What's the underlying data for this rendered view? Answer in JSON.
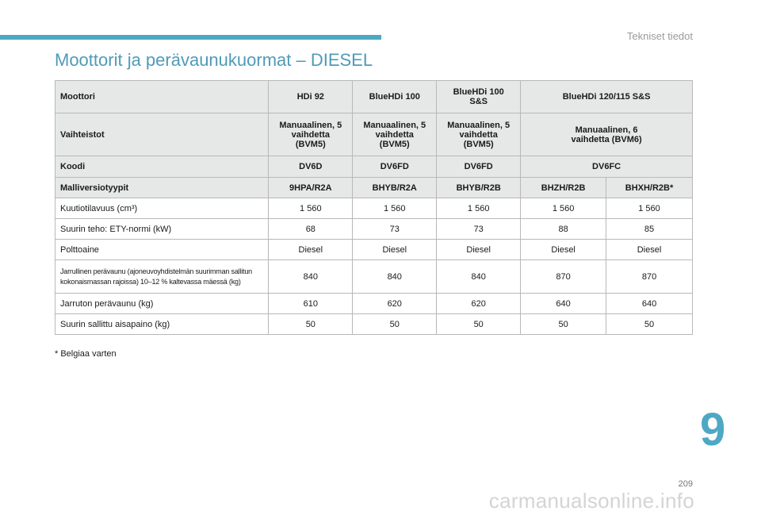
{
  "header": {
    "section_label": "Tekniset tiedot",
    "title": "Moottorit ja perävaunukuormat – DIESEL"
  },
  "table": {
    "header_rows": [
      {
        "label": "Moottori",
        "cells": [
          "HDi 92",
          "BlueHDi 100",
          "BlueHDi 100 S&S",
          "BlueHDi 120/115 S&S"
        ]
      },
      {
        "label": "Vaihteistot",
        "cells": [
          "Manuaalinen, 5 vaihdetta (BVM5)",
          "Manuaalinen, 5 vaihdetta (BVM5)",
          "Manuaalinen, 5 vaihdetta (BVM5)",
          "Manuaalinen, 6 vaihdetta (BVM6)"
        ]
      },
      {
        "label": "Koodi",
        "cells": [
          "DV6D",
          "DV6FD",
          "DV6FD",
          "DV6FC"
        ]
      },
      {
        "label": "Malliversiotyypit",
        "cells": [
          "9HPA/R2A",
          "BHYB/R2A",
          "BHYB/R2B",
          "BHZH/R2B",
          "BHXH/R2B*"
        ]
      }
    ],
    "body_rows": [
      {
        "label": "Kuutiotilavuus (cm³)",
        "cells": [
          "1 560",
          "1 560",
          "1 560",
          "1 560",
          "1 560"
        ]
      },
      {
        "label": "Suurin teho: ETY-normi (kW)",
        "cells": [
          "68",
          "73",
          "73",
          "88",
          "85"
        ]
      },
      {
        "label": "Polttoaine",
        "cells": [
          "Diesel",
          "Diesel",
          "Diesel",
          "Diesel",
          "Diesel"
        ]
      },
      {
        "label": "Jarrullinen perävaunu (ajoneuvoyhdistelmän suurimman sallitun kokonaismassan rajoissa) 10–12 % kaltevassa mäessä (kg)",
        "cells": [
          "840",
          "840",
          "840",
          "870",
          "870"
        ]
      },
      {
        "label": "Jarruton perävaunu (kg)",
        "cells": [
          "610",
          "620",
          "620",
          "640",
          "640"
        ]
      },
      {
        "label": "Suurin sallittu aisapaino (kg)",
        "cells": [
          "50",
          "50",
          "50",
          "50",
          "50"
        ]
      }
    ]
  },
  "footnote": "*  Belgiaa varten",
  "chapter_number": "9",
  "page_number": "209",
  "watermark": "carmanualsonline.info",
  "colors": {
    "accent": "#4ea8c4",
    "header_bg": "#e6e8e8",
    "border": "#b8b8b8"
  }
}
